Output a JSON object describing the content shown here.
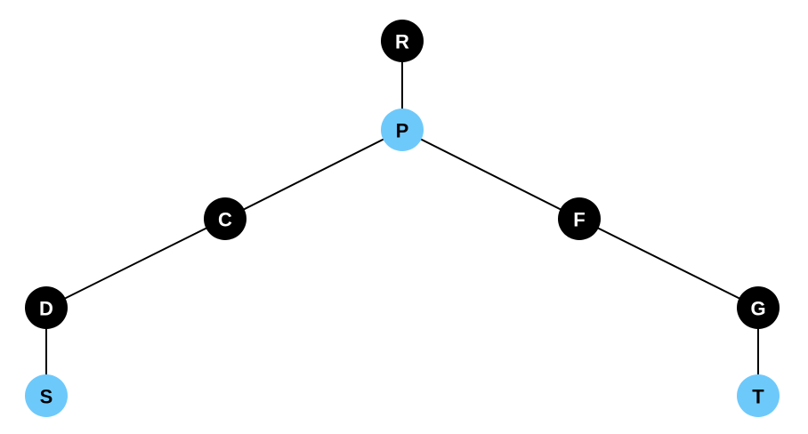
{
  "nodes": [
    {
      "id": "R",
      "label": "R",
      "color": "#000000",
      "text_color": "#ffffff"
    },
    {
      "id": "P",
      "label": "P",
      "color": "#6ec9fb",
      "text_color": "#000000"
    },
    {
      "id": "C",
      "label": "C",
      "color": "#000000",
      "text_color": "#ffffff"
    },
    {
      "id": "F",
      "label": "F",
      "color": "#000000",
      "text_color": "#ffffff"
    },
    {
      "id": "D",
      "label": "D",
      "color": "#000000",
      "text_color": "#ffffff"
    },
    {
      "id": "G",
      "label": "G",
      "color": "#000000",
      "text_color": "#ffffff"
    },
    {
      "id": "S",
      "label": "S",
      "color": "#6ec9fb",
      "text_color": "#000000"
    },
    {
      "id": "T",
      "label": "T",
      "color": "#6ec9fb",
      "text_color": "#000000"
    }
  ],
  "edges": [
    {
      "from": "R",
      "to": "P"
    },
    {
      "from": "P",
      "to": "C"
    },
    {
      "from": "P",
      "to": "F"
    },
    {
      "from": "C",
      "to": "D"
    },
    {
      "from": "F",
      "to": "G"
    },
    {
      "from": "D",
      "to": "S"
    },
    {
      "from": "G",
      "to": "T"
    }
  ]
}
